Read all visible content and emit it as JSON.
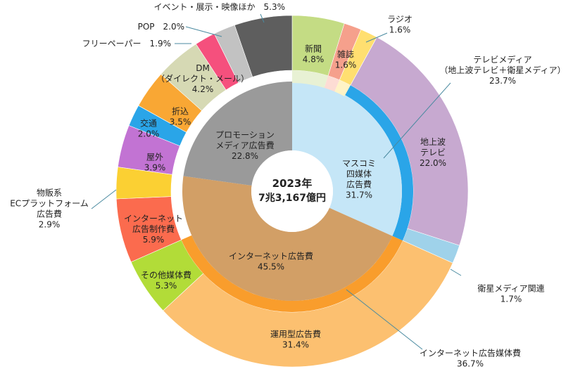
{
  "chart_data": {
    "type": "pie",
    "center_label": [
      "2023年",
      "7兆3,167億円"
    ],
    "inner_ring": [
      {
        "name": "マスコミ四媒体広告費",
        "value": 31.7,
        "label": [
          "マスコミ",
          "四媒体",
          "広告費",
          "31.7%"
        ]
      },
      {
        "name": "インターネット広告費",
        "value": 45.5,
        "label": [
          "インターネット広告費",
          "45.5%"
        ]
      },
      {
        "name": "プロモーションメディア広告費",
        "value": 22.8,
        "label": [
          "プロモーション",
          "メディア広告費",
          "22.8%"
        ]
      }
    ],
    "outer_ring": [
      {
        "name": "新聞",
        "value": 4.8,
        "label": [
          "新聞",
          "4.8%"
        ]
      },
      {
        "name": "雑誌",
        "value": 1.6,
        "label": [
          "雑誌",
          "1.6%"
        ]
      },
      {
        "name": "ラジオ",
        "value": 1.6,
        "label": [
          "ラジオ",
          "1.6%"
        ]
      },
      {
        "name": "地上波テレビ",
        "value": 22.0,
        "label": [
          "地上波",
          "テレビ",
          "22.0%"
        ]
      },
      {
        "name": "衛星メディア関連",
        "value": 1.7,
        "label": [
          "衛星メディア関連",
          "1.7%"
        ]
      },
      {
        "name": "運用型広告費",
        "value": 31.4,
        "label": [
          "運用型広告費",
          "31.4%"
        ]
      },
      {
        "name": "その他媒体費",
        "value": 5.3,
        "label": [
          "その他媒体費",
          "5.3%"
        ]
      },
      {
        "name": "インターネット広告制作費",
        "value": 5.9,
        "label": [
          "インターネット",
          "広告制作費",
          "5.9%"
        ]
      },
      {
        "name": "物販系ECプラットフォーム広告費",
        "value": 2.9,
        "label": [
          "物販系",
          "ECプラットフォーム",
          "広告費",
          "2.9%"
        ]
      },
      {
        "name": "屋外",
        "value": 3.9,
        "label": [
          "屋外",
          "3.9%"
        ]
      },
      {
        "name": "交通",
        "value": 2.0,
        "label": [
          "交通",
          "2.0%"
        ]
      },
      {
        "name": "折込",
        "value": 3.5,
        "label": [
          "折込",
          "3.5%"
        ]
      },
      {
        "name": "DM（ダイレクト・メール）",
        "value": 4.2,
        "label": [
          "DM",
          "（ダイレクト・メール）",
          "4.2%"
        ]
      },
      {
        "name": "フリーペーパー",
        "value": 1.9,
        "label": [
          "フリーペーパー　1.9%"
        ]
      },
      {
        "name": "POP",
        "value": 2.0,
        "label": [
          "POP　2.0%"
        ]
      },
      {
        "name": "イベント・展示・映像ほか",
        "value": 5.3,
        "label": [
          "イベント・展示・映像ほか　5.3%"
        ]
      }
    ],
    "bracket_labels": [
      {
        "name": "テレビメディア（地上波テレビ＋衛星メディア）",
        "value": 23.7,
        "label": [
          "テレビメディア",
          "（地上波テレビ＋衛星メディア）",
          "23.7%"
        ]
      },
      {
        "name": "インターネット広告媒体費",
        "value": 36.7,
        "label": [
          "インターネット広告媒体費",
          "36.7%"
        ]
      }
    ]
  },
  "colors": {
    "inner": [
      "#c5e6f7",
      "#d29f66",
      "#9a9a9a"
    ],
    "outer": [
      "#c4dc84",
      "#f5a08c",
      "#ffdf70",
      "#c7a9d0",
      "#9fd2ea",
      "#fcc070",
      "#b2dc38",
      "#fb6b4e",
      "#fbd033",
      "#c273d3",
      "#2aa5e8",
      "#f9a734",
      "#d6d9b4",
      "#f5507d",
      "#c2c2c2",
      "#5e5e5e"
    ],
    "bracket": [
      "#2aa5e8",
      "#f99d2c"
    ]
  }
}
